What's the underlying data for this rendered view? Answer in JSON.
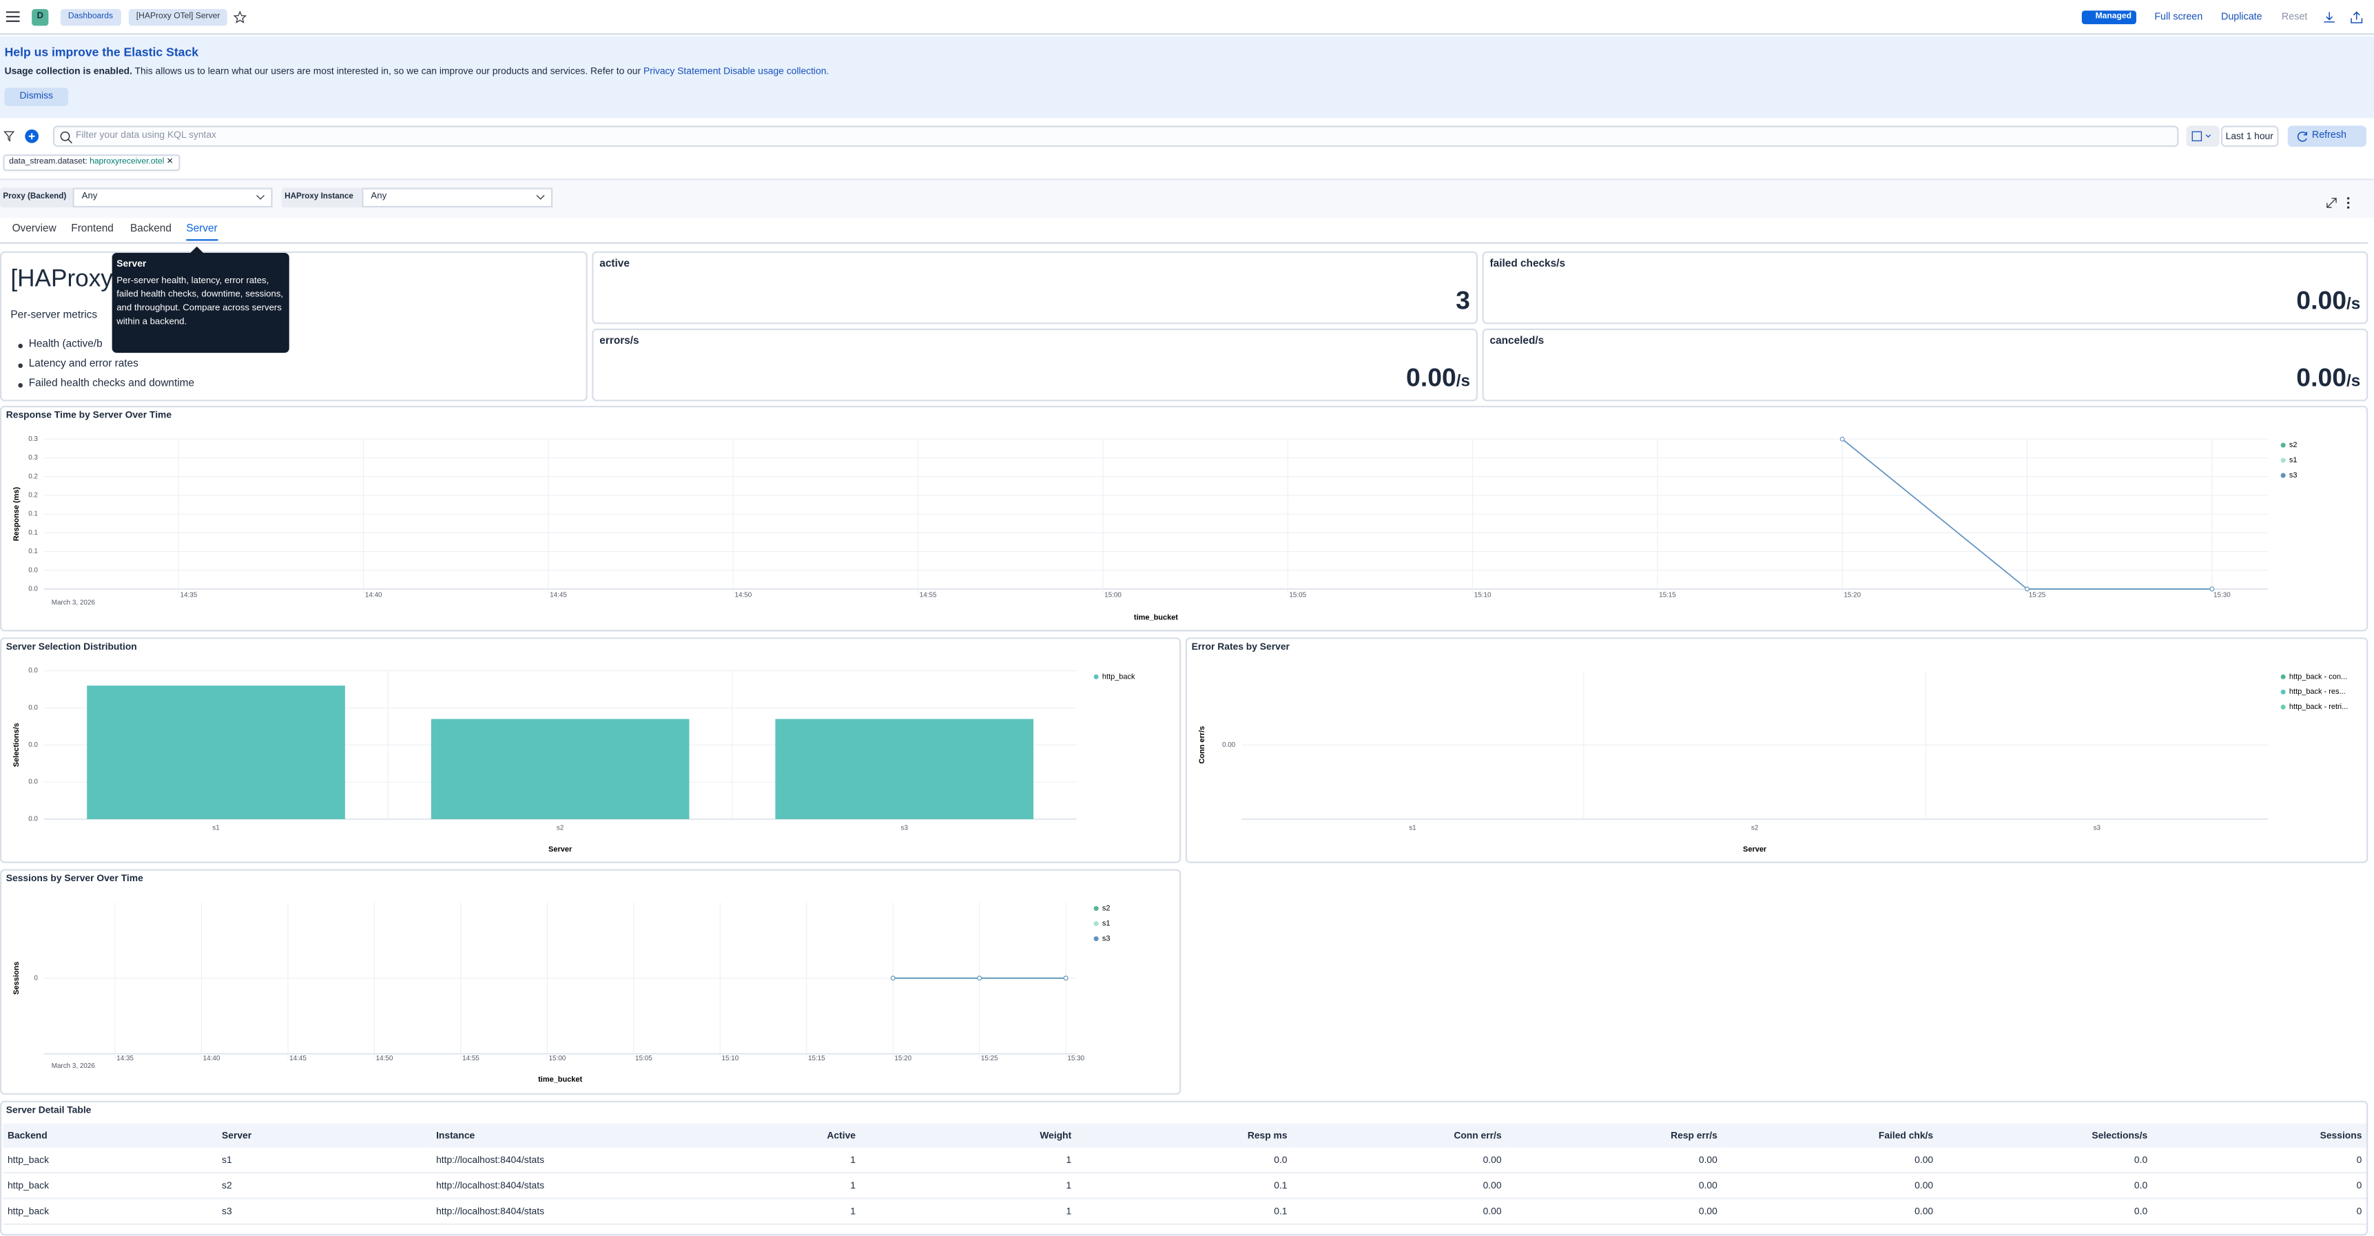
{
  "header": {
    "avatar": "D",
    "breadcrumbs": [
      "Dashboards",
      "[HAProxy OTel] Server"
    ],
    "badge": "Managed",
    "actions": [
      "Full screen",
      "Duplicate",
      "Reset"
    ]
  },
  "banner": {
    "title": "Help us improve the Elastic Stack",
    "bold": "Usage collection is enabled.",
    "text": "This allows us to learn what our users are most interested in, so we can improve our products and services. Refer to our",
    "privacy": "Privacy Statement",
    "disable": "Disable usage collection.",
    "dismiss": "Dismiss"
  },
  "query": {
    "placeholder": "Filter your data using KQL syntax",
    "time_range": "Last 1 hour",
    "refresh": "Refresh"
  },
  "filter": {
    "field": "data_stream.dataset:",
    "value": "haproxyreceiver.otel"
  },
  "controls": [
    {
      "label": "Proxy (Backend)",
      "value": "Any"
    },
    {
      "label": "HAProxy Instance",
      "value": "Any"
    }
  ],
  "tabs": {
    "items": [
      "Overview",
      "Frontend",
      "Backend",
      "Server"
    ],
    "active": 3
  },
  "tooltip": {
    "title": "Server",
    "text": "Per-server health, latency, error rates, failed health checks, downtime, sessions, and throughput. Compare across servers within a backend."
  },
  "markdown": {
    "heading": "[HAProxy",
    "text": "Per-server metrics",
    "items": [
      "Health (active/b",
      "Latency and error rates",
      "Failed health checks and downtime"
    ]
  },
  "metrics": [
    {
      "label": "active",
      "value": "3"
    },
    {
      "label": "failed checks/s",
      "value": "0.00",
      "unit": "/s"
    },
    {
      "label": "errors/s",
      "value": "0.00",
      "unit": "/s"
    },
    {
      "label": "canceled/s",
      "value": "0.00",
      "unit": "/s"
    }
  ],
  "charts": [
    {
      "type": "line",
      "title": "Response Time by Server Over Time",
      "y_label": "Response (ms)",
      "x_label": "time_bucket",
      "x_date": "March 3, 2026",
      "xticks": [
        "14:35",
        "14:40",
        "14:45",
        "14:50",
        "14:55",
        "15:00",
        "15:05",
        "15:10",
        "15:15",
        "15:20",
        "15:25",
        "15:30"
      ],
      "x": [
        "15:20",
        "15:25",
        "15:30"
      ],
      "series": [
        {
          "name": "s2",
          "color": "#54b399",
          "values": [
            null,
            0,
            0
          ]
        },
        {
          "name": "s1",
          "color": "#a6e1d4",
          "values": [
            null,
            0,
            0
          ]
        },
        {
          "name": "s3",
          "color": "#6092c0",
          "values": [
            0.3,
            0,
            0
          ]
        }
      ],
      "ylim": [
        0,
        0.3
      ],
      "yticks": [
        {
          "value": 0.3,
          "label": "0.3"
        },
        {
          "value": 0.2625,
          "label": "0.3"
        },
        {
          "value": 0.225,
          "label": "0.2"
        },
        {
          "value": 0.1875,
          "label": "0.2"
        },
        {
          "value": 0.15,
          "label": "0.1"
        },
        {
          "value": 0.1125,
          "label": "0.1"
        },
        {
          "value": 0.075,
          "label": "0.1"
        },
        {
          "value": 0.0375,
          "label": "0.0"
        },
        {
          "value": 0,
          "label": "0.0"
        }
      ],
      "grid": true,
      "legend": "right"
    },
    {
      "type": "bar",
      "title": "Server Selection Distribution",
      "y_label": "Selections/s",
      "x_label": "Server",
      "categories": [
        "s1",
        "s2",
        "s3"
      ],
      "series": [
        {
          "name": "http_back",
          "color": "#5cc3bc",
          "values": [
            0.036,
            0.027,
            0.027
          ]
        }
      ],
      "ylim": [
        0,
        0.04
      ],
      "yticks": [
        {
          "value": 0.04,
          "label": "0.0"
        },
        {
          "value": 0.03,
          "label": "0.0"
        },
        {
          "value": 0.02,
          "label": "0.0"
        },
        {
          "value": 0.01,
          "label": "0.0"
        },
        {
          "value": 0,
          "label": "0.0"
        }
      ],
      "grid": true,
      "legend": "right"
    },
    {
      "type": "bar",
      "title": "Error Rates by Server",
      "y_label": "Conn err/s",
      "x_label": "Server",
      "categories": [
        "s1",
        "s2",
        "s3"
      ],
      "series": [
        {
          "name": "http_back - con...",
          "color": "#54b399",
          "values": [
            0,
            0,
            0
          ]
        },
        {
          "name": "http_back - res...",
          "color": "#5cc3bc",
          "values": [
            0,
            0,
            0
          ]
        },
        {
          "name": "http_back - retri...",
          "color": "#6dccb1",
          "values": [
            0,
            0,
            0
          ]
        }
      ],
      "ylim": [
        -1,
        1
      ],
      "yticks": [
        {
          "value": 0,
          "label": "0.00"
        }
      ],
      "grid": true,
      "legend": "right"
    },
    {
      "type": "line",
      "title": "Sessions by Server Over Time",
      "y_label": "Sessions",
      "x_label": "time_bucket",
      "x_date": "March 3, 2026",
      "xticks": [
        "14:35",
        "14:40",
        "14:45",
        "14:50",
        "14:55",
        "15:00",
        "15:05",
        "15:10",
        "15:15",
        "15:20",
        "15:25",
        "15:30"
      ],
      "x": [
        "15:20",
        "15:25",
        "15:30"
      ],
      "series": [
        {
          "name": "s2",
          "color": "#54b399",
          "values": [
            0,
            0,
            0
          ]
        },
        {
          "name": "s1",
          "color": "#a6e1d4",
          "values": [
            0,
            0,
            0
          ]
        },
        {
          "name": "s3",
          "color": "#6092c0",
          "values": [
            0,
            0,
            0
          ]
        }
      ],
      "ylim": [
        -1,
        1
      ],
      "yticks": [
        0
      ],
      "grid": true,
      "legend": "right"
    }
  ],
  "table": {
    "title": "Server Detail Table",
    "columns": [
      "Backend",
      "Server",
      "Instance",
      "Active",
      "Weight",
      "Resp ms",
      "Conn err/s",
      "Resp err/s",
      "Failed chk/s",
      "Selections/s",
      "Sessions"
    ],
    "rows": [
      [
        "http_back",
        "s1",
        "http://localhost:8404/stats",
        "1",
        "1",
        "0.0",
        "0.00",
        "0.00",
        "0.00",
        "0.0",
        "0"
      ],
      [
        "http_back",
        "s2",
        "http://localhost:8404/stats",
        "1",
        "1",
        "0.1",
        "0.00",
        "0.00",
        "0.00",
        "0.0",
        "0"
      ],
      [
        "http_back",
        "s3",
        "http://localhost:8404/stats",
        "1",
        "1",
        "0.1",
        "0.00",
        "0.00",
        "0.00",
        "0.0",
        "0"
      ]
    ]
  }
}
